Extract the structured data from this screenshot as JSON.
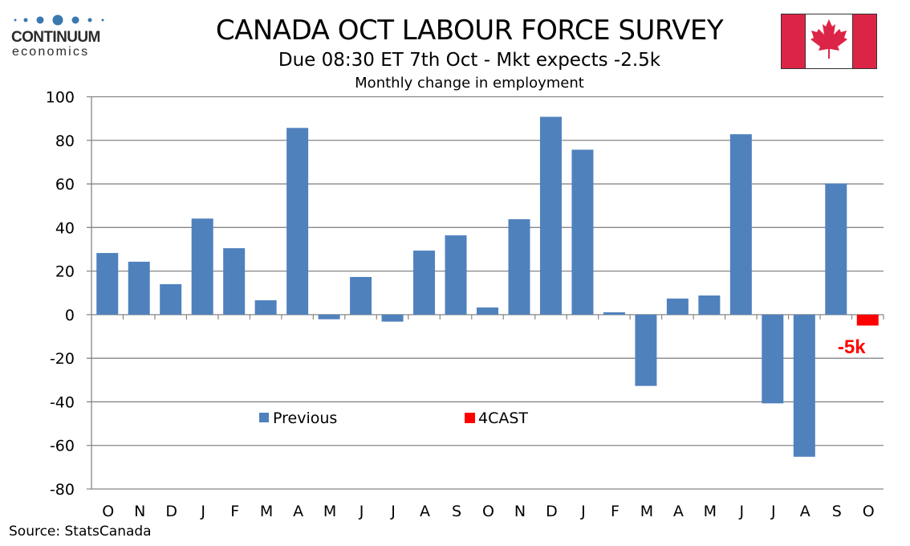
{
  "header": {
    "logo_name": "CONTINUUM",
    "logo_sub": "economics",
    "flag": "canada-flag",
    "title": "CANADA OCT LABOUR FORCE SURVEY",
    "subtitle": "Due 08:30 ET 7th Oct - Mkt expects -2.5k",
    "chart_subtitle": "Monthly change in employment"
  },
  "footer": {
    "source": "Source: StatsCanada"
  },
  "colors": {
    "previous": "#4f81bd",
    "forecast": "#ff0000",
    "grid": "#868686",
    "flag_red": "#dc2546",
    "logo_blue": "#3a78b0"
  },
  "chart_data": {
    "type": "bar",
    "title": "CANADA OCT LABOUR FORCE SURVEY",
    "subtitle": "Monthly change in employment",
    "xlabel": "",
    "ylabel": "",
    "ylim": [
      -80,
      100
    ],
    "yticks": [
      100,
      80,
      60,
      40,
      20,
      0,
      -20,
      -40,
      -60,
      -80
    ],
    "grid": true,
    "categories": [
      "O",
      "N",
      "D",
      "J",
      "F",
      "M",
      "A",
      "M",
      "J",
      "J",
      "A",
      "S",
      "O",
      "N",
      "D",
      "J",
      "F",
      "M",
      "A",
      "M",
      "J",
      "J",
      "A",
      "S",
      "O"
    ],
    "series": [
      {
        "name": "Previous",
        "values": [
          28.3,
          24.3,
          14.0,
          44.1,
          30.5,
          6.6,
          85.7,
          -2.1,
          17.3,
          -3.2,
          29.4,
          36.4,
          3.3,
          43.8,
          90.8,
          75.7,
          1.1,
          -32.7,
          7.4,
          8.8,
          82.8,
          -40.7,
          -65.2,
          60.2,
          null
        ]
      },
      {
        "name": "4CAST",
        "values": [
          null,
          null,
          null,
          null,
          null,
          null,
          null,
          null,
          null,
          null,
          null,
          null,
          null,
          null,
          null,
          null,
          null,
          null,
          null,
          null,
          null,
          null,
          null,
          null,
          -5.0
        ]
      }
    ],
    "legend": {
      "position": "bottom-left-inside",
      "entries": [
        "Previous",
        "4CAST"
      ]
    },
    "annotations": [
      {
        "category_index": 24,
        "text": "-5k"
      }
    ]
  }
}
